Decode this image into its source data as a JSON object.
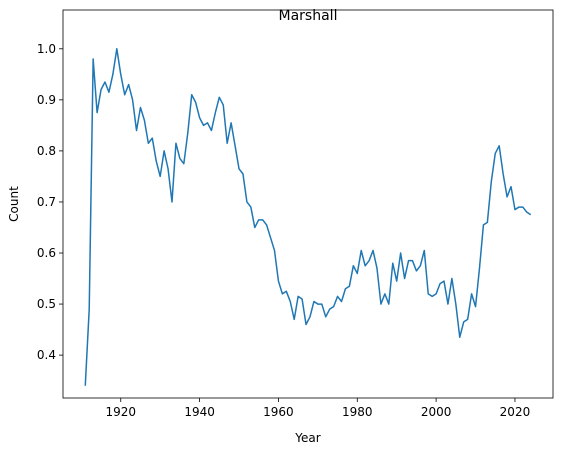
{
  "chart_data": {
    "type": "line",
    "title": "Marshall",
    "x_label": "Year",
    "y_label": "Count",
    "x": [
      1911,
      1912,
      1913,
      1914,
      1915,
      1916,
      1917,
      1918,
      1919,
      1920,
      1921,
      1922,
      1923,
      1924,
      1925,
      1926,
      1927,
      1928,
      1929,
      1930,
      1931,
      1932,
      1933,
      1934,
      1935,
      1936,
      1937,
      1938,
      1939,
      1940,
      1941,
      1942,
      1943,
      1944,
      1945,
      1946,
      1947,
      1948,
      1949,
      1950,
      1951,
      1952,
      1953,
      1954,
      1955,
      1956,
      1957,
      1958,
      1959,
      1960,
      1961,
      1962,
      1963,
      1964,
      1965,
      1966,
      1967,
      1968,
      1969,
      1970,
      1971,
      1972,
      1973,
      1974,
      1975,
      1976,
      1977,
      1978,
      1979,
      1980,
      1981,
      1982,
      1983,
      1984,
      1985,
      1986,
      1987,
      1988,
      1989,
      1990,
      1991,
      1992,
      1993,
      1994,
      1995,
      1996,
      1997,
      1998,
      1999,
      2000,
      2001,
      2002,
      2003,
      2004,
      2005,
      2006,
      2007,
      2008,
      2009,
      2010,
      2011,
      2012,
      2013,
      2014,
      2015,
      2016,
      2017,
      2018,
      2019,
      2020,
      2021,
      2022,
      2023,
      2024
    ],
    "series": [
      {
        "name": "Marshall",
        "color": "#1f77b4",
        "values": [
          0.34,
          0.49,
          0.98,
          0.875,
          0.92,
          0.935,
          0.915,
          0.95,
          1.0,
          0.95,
          0.91,
          0.93,
          0.9,
          0.84,
          0.885,
          0.86,
          0.815,
          0.825,
          0.78,
          0.75,
          0.8,
          0.765,
          0.7,
          0.815,
          0.785,
          0.775,
          0.835,
          0.91,
          0.895,
          0.865,
          0.85,
          0.855,
          0.84,
          0.875,
          0.905,
          0.89,
          0.815,
          0.855,
          0.81,
          0.765,
          0.755,
          0.7,
          0.69,
          0.65,
          0.665,
          0.665,
          0.655,
          0.63,
          0.605,
          0.545,
          0.52,
          0.525,
          0.505,
          0.47,
          0.515,
          0.51,
          0.46,
          0.475,
          0.505,
          0.5,
          0.5,
          0.475,
          0.49,
          0.495,
          0.515,
          0.505,
          0.53,
          0.535,
          0.575,
          0.56,
          0.605,
          0.575,
          0.585,
          0.605,
          0.57,
          0.5,
          0.52,
          0.5,
          0.58,
          0.545,
          0.6,
          0.55,
          0.585,
          0.585,
          0.565,
          0.575,
          0.605,
          0.52,
          0.515,
          0.52,
          0.54,
          0.545,
          0.5,
          0.55,
          0.5,
          0.435,
          0.465,
          0.47,
          0.52,
          0.495,
          0.57,
          0.655,
          0.66,
          0.74,
          0.795,
          0.81,
          0.755,
          0.71,
          0.73,
          0.685,
          0.69,
          0.69,
          0.68,
          0.675
        ]
      }
    ],
    "xlim": [
      1905.35,
      2029.65
    ],
    "ylim": [
      0.316,
      1.076
    ],
    "xticks": [
      1920,
      1940,
      1960,
      1980,
      2000,
      2020
    ],
    "yticks": [
      0.4,
      0.5,
      0.6,
      0.7,
      0.8,
      0.9,
      {
        "value": 1.0,
        "label": "1.0"
      }
    ]
  }
}
